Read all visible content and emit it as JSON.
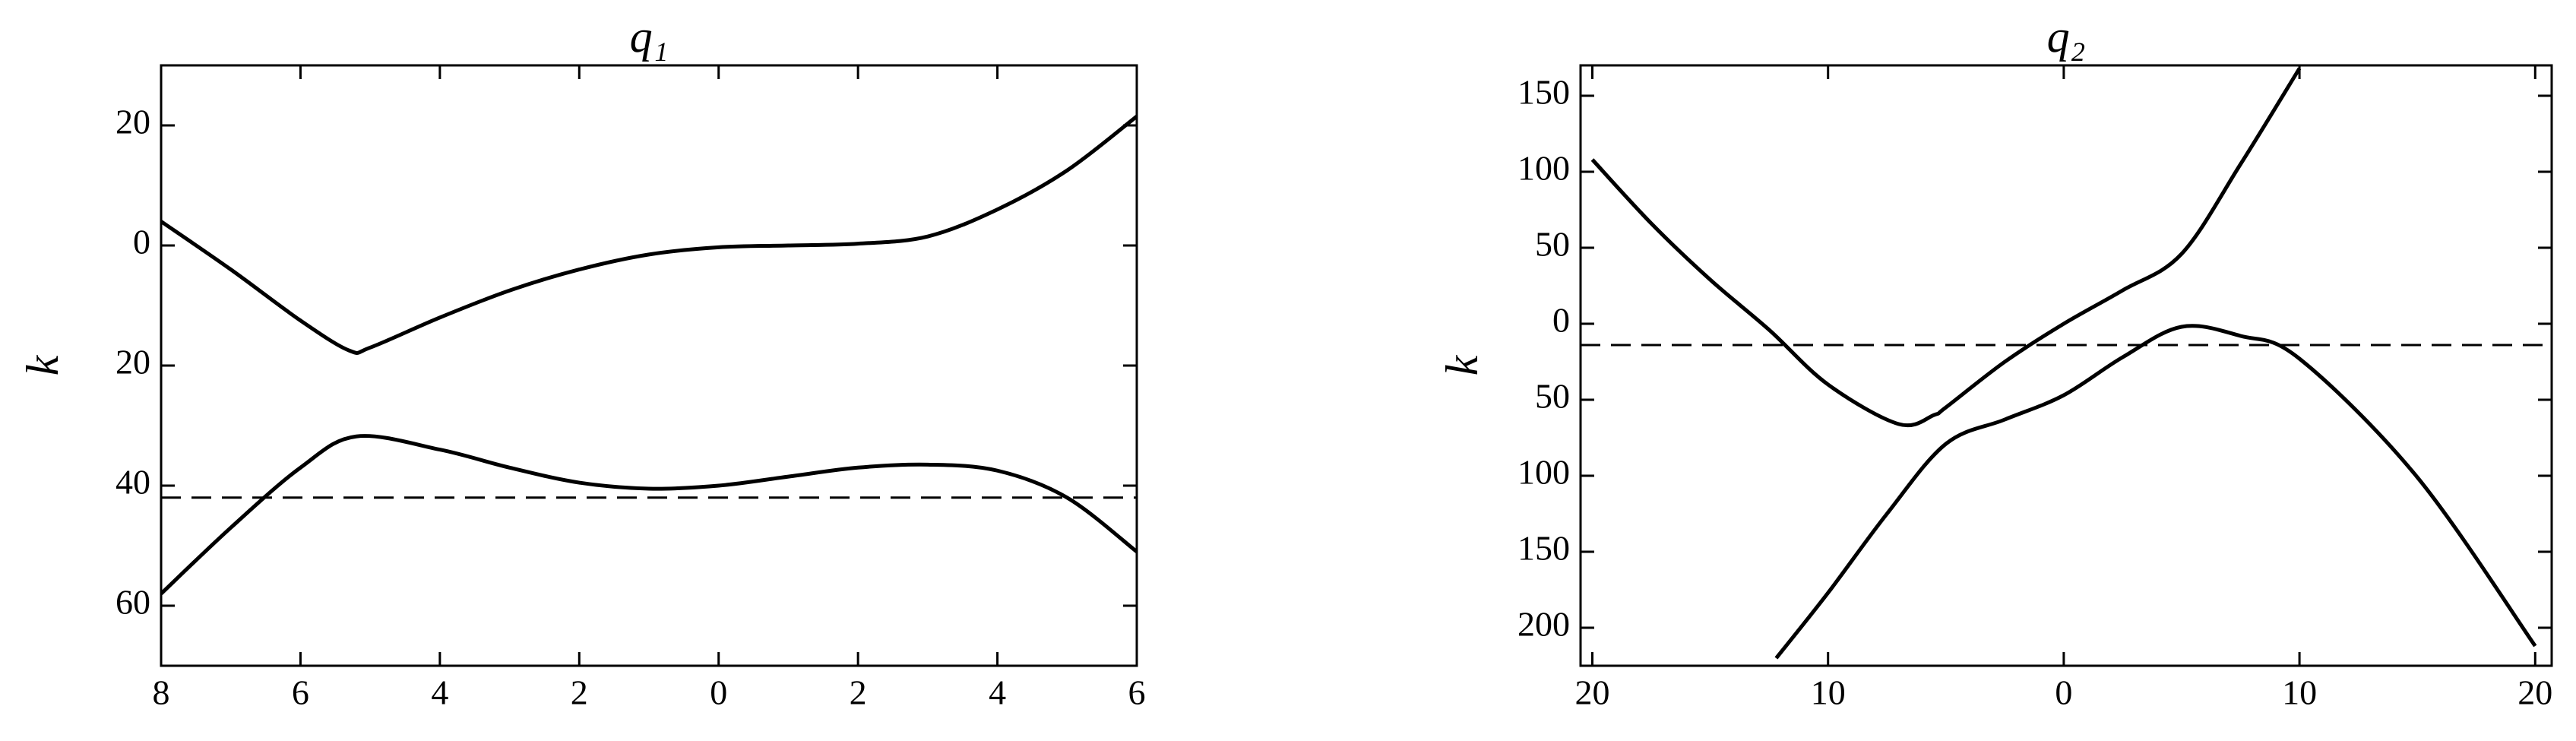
{
  "chart_data": [
    {
      "type": "line",
      "title": "q₁",
      "ylabel": "k",
      "xlim": [
        -8,
        6
      ],
      "ylim": [
        -70,
        30
      ],
      "xticks": [
        {
          "value": -8,
          "label": "8"
        },
        {
          "value": -6,
          "label": "6"
        },
        {
          "value": -4,
          "label": "4"
        },
        {
          "value": -2,
          "label": "2"
        },
        0,
        2,
        4,
        6
      ],
      "yticks": [
        20,
        0,
        {
          "value": -20,
          "label": "20"
        },
        {
          "value": -40,
          "label": "40"
        },
        {
          "value": -60,
          "label": "60"
        }
      ],
      "hline": -42,
      "series": [
        {
          "color": "#000000",
          "x": [
            -8,
            -7,
            -6,
            -5.3,
            -5,
            -4,
            -3,
            -2,
            -1,
            0,
            1,
            2,
            3,
            4,
            5,
            6
          ],
          "values": [
            4,
            -4,
            -12.5,
            -17.5,
            -17,
            -12,
            -7.5,
            -4,
            -1.5,
            -0.3,
            0,
            0.3,
            1.5,
            6,
            12.5,
            21.5
          ]
        },
        {
          "color": "#000000",
          "x": [
            -8,
            -7,
            -6,
            -5.2,
            -4,
            -3,
            -2,
            -1,
            0,
            1,
            2,
            3,
            4,
            5,
            6
          ],
          "values": [
            -58,
            -47,
            -37,
            -31.8,
            -34,
            -37,
            -39.5,
            -40.5,
            -40,
            -38.5,
            -37,
            -36.5,
            -37.5,
            -42,
            -51
          ]
        }
      ]
    },
    {
      "type": "line",
      "title": "q₂",
      "ylabel": "k",
      "xlim": [
        -20.5,
        20.7
      ],
      "ylim": [
        -225,
        170
      ],
      "xticks": [
        {
          "value": -20,
          "label": "20"
        },
        {
          "value": -10,
          "label": "10"
        },
        0,
        10,
        20
      ],
      "yticks": [
        150,
        100,
        50,
        0,
        {
          "value": -50,
          "label": "50"
        },
        {
          "value": -100,
          "label": "100"
        },
        {
          "value": -150,
          "label": "150"
        },
        {
          "value": -200,
          "label": "200"
        }
      ],
      "hline": -14,
      "series": [
        {
          "color": "#000000",
          "x": [
            -20,
            -17.5,
            -15,
            -12.5,
            -10,
            -7,
            -5.5,
            -5,
            -2.5,
            0,
            2.5,
            5,
            7.5,
            10
          ],
          "values": [
            108,
            66,
            29,
            -4,
            -40,
            -66,
            -60,
            -55,
            -25,
            0,
            22,
            46,
            105,
            168
          ]
        },
        {
          "color": "#000000",
          "x": [
            -12.2,
            -10,
            -7.5,
            -5,
            -2.5,
            0,
            2.5,
            5,
            7.5,
            10,
            15,
            20
          ],
          "values": [
            -220,
            -177,
            -125,
            -79,
            -63,
            -47,
            -22,
            -2,
            -8,
            -23,
            -101,
            -212
          ]
        }
      ]
    }
  ]
}
